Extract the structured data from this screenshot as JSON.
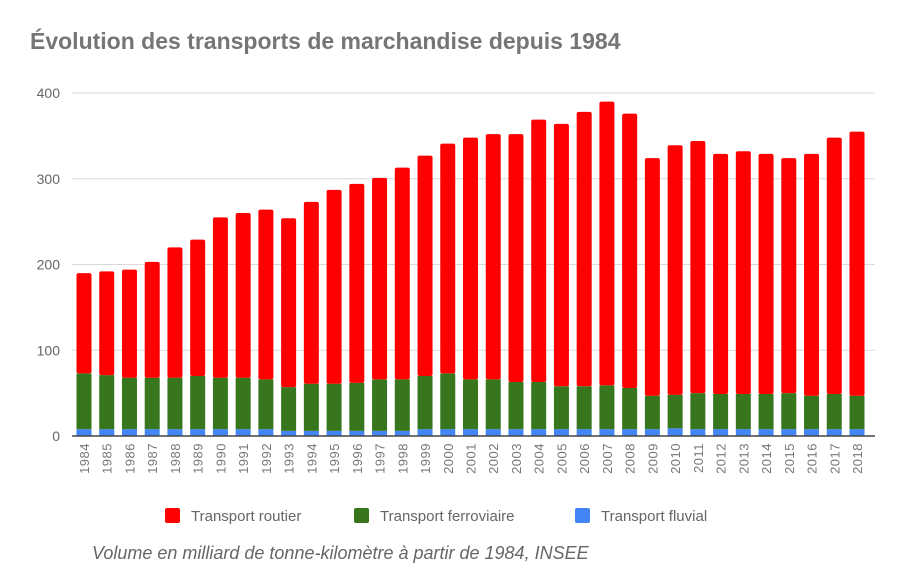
{
  "chart_data": {
    "type": "bar",
    "stacked": true,
    "title": "Évolution des transports de marchandise depuis 1984",
    "caption": "Volume en milliard de tonne-kilomètre à partir de 1984, INSEE",
    "xlabel": "",
    "ylabel": "",
    "ylim": [
      0,
      400
    ],
    "yticks": [
      "0",
      "100",
      "200",
      "300",
      "400"
    ],
    "grid": true,
    "legend_position": "bottom",
    "categories": [
      "1984",
      "1985",
      "1986",
      "1987",
      "1988",
      "1989",
      "1990",
      "1991",
      "1992",
      "1993",
      "1994",
      "1995",
      "1996",
      "1997",
      "1998",
      "1999",
      "2000",
      "2001",
      "2002",
      "2003",
      "2004",
      "2005",
      "2006",
      "2007",
      "2008",
      "2009",
      "2010",
      "2011",
      "2012",
      "2013",
      "2014",
      "2015",
      "2016",
      "2017",
      "2018"
    ],
    "series": [
      {
        "name": "Transport fluvial",
        "color": "#4285f4",
        "values": [
          8,
          8,
          8,
          8,
          8,
          8,
          8,
          8,
          8,
          6,
          6,
          6,
          6,
          6,
          6,
          8,
          8,
          8,
          8,
          8,
          8,
          8,
          8,
          8,
          8,
          8,
          9,
          8,
          8,
          8,
          8,
          8,
          8,
          8,
          8
        ]
      },
      {
        "name": "Transport ferroviaire",
        "color": "#38761d",
        "values": [
          65,
          63,
          60,
          60,
          60,
          62,
          60,
          60,
          58,
          51,
          55,
          55,
          56,
          60,
          60,
          62,
          65,
          58,
          58,
          55,
          55,
          50,
          50,
          51,
          48,
          39,
          39,
          42,
          41,
          41,
          41,
          42,
          39,
          41,
          39
        ]
      },
      {
        "name": "Transport routier",
        "color": "#ff0000",
        "values": [
          117,
          121,
          126,
          135,
          152,
          159,
          187,
          192,
          198,
          197,
          212,
          226,
          232,
          235,
          247,
          257,
          268,
          282,
          286,
          289,
          306,
          306,
          320,
          331,
          320,
          277,
          291,
          294,
          280,
          283,
          280,
          274,
          282,
          299,
          308
        ]
      }
    ],
    "legend_order": [
      "Transport routier",
      "Transport ferroviaire",
      "Transport fluvial"
    ]
  }
}
